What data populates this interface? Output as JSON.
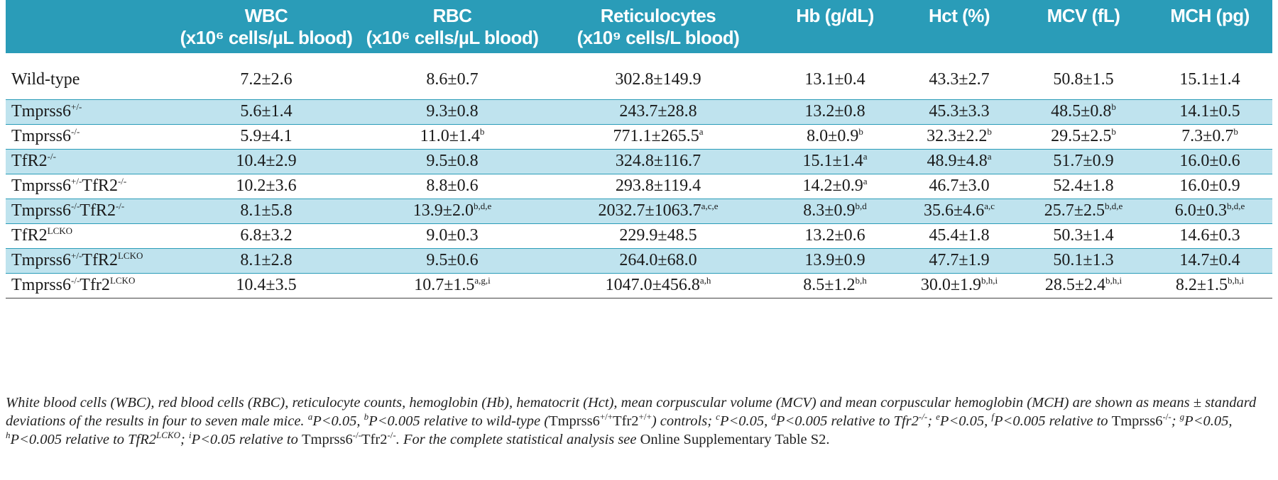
{
  "header": [
    {
      "l1": "",
      "l2": ""
    },
    {
      "l1": "WBC",
      "l2": "(x10⁶ cells/µL blood)"
    },
    {
      "l1": "RBC",
      "l2": "(x10⁶ cells/µL blood)"
    },
    {
      "l1": "Reticulocytes",
      "l2": "(x10⁹ cells/L blood)"
    },
    {
      "l1": "Hb (g/dL)",
      "l2": ""
    },
    {
      "l1": "Hct (%)",
      "l2": ""
    },
    {
      "l1": "MCV (fL)",
      "l2": ""
    },
    {
      "l1": "MCH (pg)",
      "l2": ""
    }
  ],
  "rows": [
    {
      "cells": [
        {
          "t": "Wild-type",
          "s": ""
        },
        {
          "t": "7.2±2.6",
          "s": ""
        },
        {
          "t": "8.6±0.7",
          "s": ""
        },
        {
          "t": "302.8±149.9",
          "s": ""
        },
        {
          "t": "13.1±0.4",
          "s": ""
        },
        {
          "t": "43.3±2.7",
          "s": ""
        },
        {
          "t": "50.8±1.5",
          "s": ""
        },
        {
          "t": "15.1±1.4",
          "s": ""
        }
      ]
    },
    {
      "cells": [
        {
          "t": "Tmprss6",
          "s": "+/-"
        },
        {
          "t": "5.6±1.4",
          "s": ""
        },
        {
          "t": "9.3±0.8",
          "s": ""
        },
        {
          "t": "243.7±28.8",
          "s": ""
        },
        {
          "t": "13.2±0.8",
          "s": ""
        },
        {
          "t": "45.3±3.3",
          "s": ""
        },
        {
          "t": "48.5±0.8",
          "s": "b"
        },
        {
          "t": "14.1±0.5",
          "s": ""
        }
      ]
    },
    {
      "cells": [
        {
          "t": "Tmprss6",
          "s": "-/-"
        },
        {
          "t": "5.9±4.1",
          "s": ""
        },
        {
          "t": "11.0±1.4",
          "s": "b"
        },
        {
          "t": "771.1±265.5",
          "s": "a"
        },
        {
          "t": "8.0±0.9",
          "s": "b"
        },
        {
          "t": "32.3±2.2",
          "s": "b"
        },
        {
          "t": "29.5±2.5",
          "s": "b"
        },
        {
          "t": "7.3±0.7",
          "s": "b"
        }
      ]
    },
    {
      "cells": [
        {
          "t": "TfR2",
          "s": "-/-"
        },
        {
          "t": "10.4±2.9",
          "s": ""
        },
        {
          "t": "9.5±0.8",
          "s": ""
        },
        {
          "t": "324.8±116.7",
          "s": ""
        },
        {
          "t": "15.1±1.4",
          "s": "a"
        },
        {
          "t": "48.9±4.8",
          "s": "a"
        },
        {
          "t": "51.7±0.9",
          "s": ""
        },
        {
          "t": "16.0±0.6",
          "s": ""
        }
      ]
    },
    {
      "cells": [
        {
          "t": "Tmprss6",
          "s": "+/-",
          "t2": "TfR2",
          "s2": "-/-"
        },
        {
          "t": "10.2±3.6",
          "s": ""
        },
        {
          "t": "8.8±0.6",
          "s": ""
        },
        {
          "t": "293.8±119.4",
          "s": ""
        },
        {
          "t": "14.2±0.9",
          "s": "a"
        },
        {
          "t": "46.7±3.0",
          "s": ""
        },
        {
          "t": "52.4±1.8",
          "s": ""
        },
        {
          "t": "16.0±0.9",
          "s": ""
        }
      ]
    },
    {
      "cells": [
        {
          "t": "Tmprss6",
          "s": "-/-",
          "t2": "TfR2",
          "s2": "-/-"
        },
        {
          "t": "8.1±5.8",
          "s": ""
        },
        {
          "t": "13.9±2.0",
          "s": "b,d,e"
        },
        {
          "t": "2032.7±1063.7",
          "s": "a,c,e"
        },
        {
          "t": "8.3±0.9",
          "s": "b,d"
        },
        {
          "t": "35.6±4.6",
          "s": "a,c"
        },
        {
          "t": "25.7±2.5",
          "s": "b,d,e"
        },
        {
          "t": "6.0±0.3",
          "s": "b,d,e"
        }
      ]
    },
    {
      "cells": [
        {
          "t": "TfR2",
          "s": "LCKO"
        },
        {
          "t": "6.8±3.2",
          "s": ""
        },
        {
          "t": "9.0±0.3",
          "s": ""
        },
        {
          "t": "229.9±48.5",
          "s": ""
        },
        {
          "t": "13.2±0.6",
          "s": ""
        },
        {
          "t": "45.4±1.8",
          "s": ""
        },
        {
          "t": "50.3±1.4",
          "s": ""
        },
        {
          "t": "14.6±0.3",
          "s": ""
        }
      ]
    },
    {
      "cells": [
        {
          "t": "Tmprss6",
          "s": "+/-",
          "t2": "TfR2",
          "s2": "LCKO"
        },
        {
          "t": "8.1±2.8",
          "s": ""
        },
        {
          "t": "9.5±0.6",
          "s": ""
        },
        {
          "t": "264.0±68.0",
          "s": ""
        },
        {
          "t": "13.9±0.9",
          "s": ""
        },
        {
          "t": "47.7±1.9",
          "s": ""
        },
        {
          "t": "50.1±1.3",
          "s": ""
        },
        {
          "t": "14.7±0.4",
          "s": ""
        }
      ]
    },
    {
      "cells": [
        {
          "t": "Tmprss6",
          "s": "-/-",
          "t2": "Tfr2",
          "s2": "LCKO"
        },
        {
          "t": "10.4±3.5",
          "s": ""
        },
        {
          "t": "10.7±1.5",
          "s": "a,g,i"
        },
        {
          "t": "1047.0±456.8",
          "s": "a,h"
        },
        {
          "t": "8.5±1.2",
          "s": "b,h"
        },
        {
          "t": "30.0±1.9",
          "s": "b,h,i"
        },
        {
          "t": "28.5±2.4",
          "s": "b,h,i"
        },
        {
          "t": "8.2±1.5",
          "s": "b,h,i"
        }
      ]
    }
  ],
  "caption": {
    "p1": "White blood cells (WBC), red blood cells (RBC), reticulocyte counts, hemoglobin (Hb), hematocrit (Hct), mean corpuscular volume (MCV) and mean corpuscular hemoglobin (MCH) are shown as means ± standard deviations of the results in four to seven male mice. ",
    "a": "a",
    "p2": "P<0.05, ",
    "b": "b",
    "p3": "P<0.005 relative to wild-type (",
    "g1": "Tmprss6",
    "g1s": "+/+",
    "g2": "Tfr2",
    "g2s": "+/+",
    "p4": ") controls; ",
    "c": "c",
    "p5": "P<0.05, ",
    "d": "d",
    "p6": "P<0.005 relative to Tfr2",
    "p6s": "-/-",
    "p7": "; ",
    "e": "e",
    "p8": "P<0.05, ",
    "f": "f",
    "p9": "P<0.005 relative to ",
    "g3": "Tmprss6",
    "g3s": "-/-",
    "p10": "; ",
    "g": "g",
    "p11": "P<0.05, ",
    "h": "h",
    "p12": "P<0.005 relative to TfR2",
    "p12s": "LCKO",
    "p13": "; ",
    "i": "i",
    "p14": "P<0.05 relative to ",
    "g4": "Tmprss6",
    "g4s": "-/-",
    "g5": "Tfr2",
    "g5s": "-/-",
    "p15": ". For the complete statistical analysis see ",
    "p16": "Online Supplementary Table S2."
  }
}
